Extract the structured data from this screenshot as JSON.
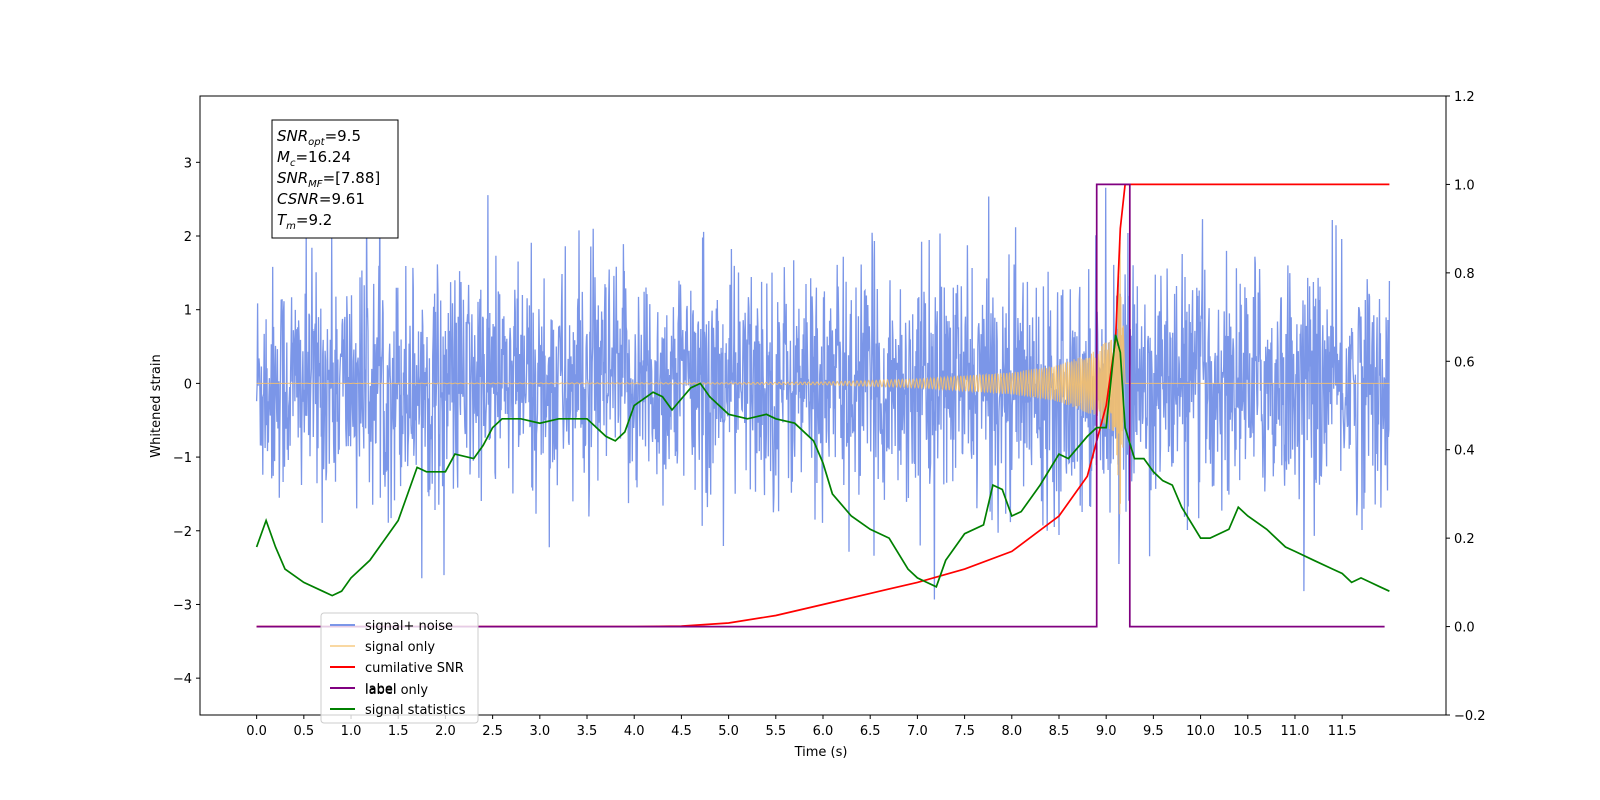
{
  "chart_data": {
    "type": "line",
    "xlabel": "Time (s)",
    "ylabel": "Whitened strain",
    "xlim": [
      -0.6,
      12.6
    ],
    "ylim_left": [
      -4.5,
      3.9
    ],
    "ylim_right": [
      -0.2,
      1.2
    ],
    "x_ticks": [
      "0.0",
      "0.5",
      "1.0",
      "1.5",
      "2.0",
      "2.5",
      "3.0",
      "3.5",
      "4.0",
      "4.5",
      "5.0",
      "5.5",
      "6.0",
      "6.5",
      "7.0",
      "7.5",
      "8.0",
      "8.5",
      "9.0",
      "9.5",
      "10.0",
      "10.5",
      "11.0",
      "11.5"
    ],
    "y_ticks_left": [
      "3",
      "2",
      "1",
      "0",
      "−1",
      "−2",
      "−3",
      "−4"
    ],
    "y_ticks_right": [
      "1.2",
      "1.0",
      "0.8",
      "0.6",
      "0.4",
      "0.2",
      "0.0",
      "−0.2"
    ],
    "legend_position": "lower-left",
    "annotation": [
      {
        "name": "SNR",
        "sub": "opt",
        "value": "=9.5"
      },
      {
        "name": "M",
        "sub": "c",
        "value": "=16.24"
      },
      {
        "name": "SNR",
        "sub": "MF",
        "value": "=[7.88]"
      },
      {
        "name": "CSNR",
        "sub": "",
        "value": "=9.61"
      },
      {
        "name": "T",
        "sub": "m",
        "value": "=9.2"
      }
    ],
    "series": [
      {
        "name": "signal+ noise",
        "axis": "left",
        "color": "#7b96e8",
        "description": "whitened noisy strain, std ~0.75, spans approx -3.2 to 3.3 with spikes to 3.6 and -4.1",
        "x_range": [
          0,
          12
        ],
        "envelope": [
          -3.2,
          3.3
        ]
      },
      {
        "name": "signal only",
        "axis": "left",
        "color": "#f5c06b",
        "x_range": [
          0,
          12
        ],
        "envelope_points": [
          [
            0,
            0
          ],
          [
            5,
            0.01
          ],
          [
            6,
            0.02
          ],
          [
            7,
            0.06
          ],
          [
            8,
            0.15
          ],
          [
            8.5,
            0.25
          ],
          [
            8.9,
            0.45
          ],
          [
            9.1,
            0.7
          ],
          [
            9.15,
            2.0
          ],
          [
            9.2,
            0
          ]
        ]
      },
      {
        "name": "cumilative SNR",
        "axis": "right",
        "color": "#ff0000",
        "points": [
          [
            0,
            0
          ],
          [
            4,
            0
          ],
          [
            4.5,
            0.001
          ],
          [
            5,
            0.008
          ],
          [
            5.5,
            0.025
          ],
          [
            6,
            0.05
          ],
          [
            6.5,
            0.075
          ],
          [
            7,
            0.1
          ],
          [
            7.5,
            0.13
          ],
          [
            8,
            0.17
          ],
          [
            8.5,
            0.25
          ],
          [
            8.8,
            0.34
          ],
          [
            9.0,
            0.5
          ],
          [
            9.1,
            0.65
          ],
          [
            9.15,
            0.9
          ],
          [
            9.2,
            1.0
          ],
          [
            12,
            1.0
          ]
        ]
      },
      {
        "name": "label",
        "axis": "right",
        "color": "#800080",
        "points": [
          [
            0,
            0
          ],
          [
            8.9,
            0
          ],
          [
            8.9,
            1.0
          ],
          [
            9.25,
            1.0
          ],
          [
            9.25,
            0
          ],
          [
            11.95,
            0
          ]
        ]
      },
      {
        "name": "signal statistics",
        "axis": "right",
        "color": "#008000",
        "points": [
          [
            0,
            0.18
          ],
          [
            0.1,
            0.24
          ],
          [
            0.2,
            0.18
          ],
          [
            0.3,
            0.13
          ],
          [
            0.5,
            0.1
          ],
          [
            0.7,
            0.08
          ],
          [
            0.8,
            0.07
          ],
          [
            0.9,
            0.08
          ],
          [
            1.0,
            0.11
          ],
          [
            1.2,
            0.15
          ],
          [
            1.4,
            0.21
          ],
          [
            1.5,
            0.24
          ],
          [
            1.6,
            0.3
          ],
          [
            1.7,
            0.36
          ],
          [
            1.8,
            0.35
          ],
          [
            2.0,
            0.35
          ],
          [
            2.1,
            0.39
          ],
          [
            2.3,
            0.38
          ],
          [
            2.4,
            0.41
          ],
          [
            2.5,
            0.45
          ],
          [
            2.6,
            0.47
          ],
          [
            2.8,
            0.47
          ],
          [
            3.0,
            0.46
          ],
          [
            3.2,
            0.47
          ],
          [
            3.4,
            0.47
          ],
          [
            3.5,
            0.47
          ],
          [
            3.7,
            0.43
          ],
          [
            3.8,
            0.42
          ],
          [
            3.9,
            0.44
          ],
          [
            4.0,
            0.5
          ],
          [
            4.2,
            0.53
          ],
          [
            4.3,
            0.52
          ],
          [
            4.4,
            0.49
          ],
          [
            4.6,
            0.54
          ],
          [
            4.7,
            0.55
          ],
          [
            4.8,
            0.52
          ],
          [
            5.0,
            0.48
          ],
          [
            5.2,
            0.47
          ],
          [
            5.4,
            0.48
          ],
          [
            5.5,
            0.47
          ],
          [
            5.7,
            0.46
          ],
          [
            5.9,
            0.42
          ],
          [
            6.0,
            0.37
          ],
          [
            6.1,
            0.3
          ],
          [
            6.3,
            0.25
          ],
          [
            6.5,
            0.22
          ],
          [
            6.7,
            0.2
          ],
          [
            6.9,
            0.13
          ],
          [
            7.0,
            0.11
          ],
          [
            7.1,
            0.1
          ],
          [
            7.2,
            0.09
          ],
          [
            7.3,
            0.15
          ],
          [
            7.5,
            0.21
          ],
          [
            7.7,
            0.23
          ],
          [
            7.8,
            0.32
          ],
          [
            7.9,
            0.31
          ],
          [
            8.0,
            0.25
          ],
          [
            8.1,
            0.26
          ],
          [
            8.3,
            0.32
          ],
          [
            8.5,
            0.39
          ],
          [
            8.6,
            0.38
          ],
          [
            8.8,
            0.43
          ],
          [
            8.9,
            0.45
          ],
          [
            9.0,
            0.45
          ],
          [
            9.1,
            0.66
          ],
          [
            9.15,
            0.62
          ],
          [
            9.2,
            0.45
          ],
          [
            9.3,
            0.38
          ],
          [
            9.4,
            0.38
          ],
          [
            9.5,
            0.35
          ],
          [
            9.6,
            0.33
          ],
          [
            9.7,
            0.32
          ],
          [
            9.8,
            0.27
          ],
          [
            10.0,
            0.2
          ],
          [
            10.1,
            0.2
          ],
          [
            10.3,
            0.22
          ],
          [
            10.4,
            0.27
          ],
          [
            10.5,
            0.25
          ],
          [
            10.7,
            0.22
          ],
          [
            10.9,
            0.18
          ],
          [
            11.0,
            0.17
          ],
          [
            11.2,
            0.15
          ],
          [
            11.4,
            0.13
          ],
          [
            11.5,
            0.12
          ],
          [
            11.6,
            0.1
          ],
          [
            11.7,
            0.11
          ],
          [
            11.8,
            0.1
          ],
          [
            11.9,
            0.09
          ],
          [
            12.0,
            0.08
          ]
        ]
      }
    ],
    "legend_extra": [
      {
        "name": "label only",
        "color": "#d8c2d8"
      }
    ]
  }
}
